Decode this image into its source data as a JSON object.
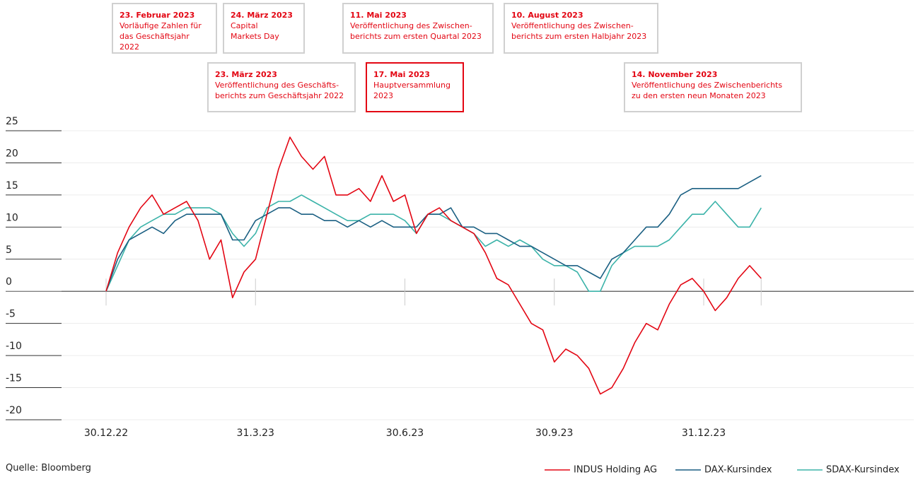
{
  "chart_data": {
    "type": "line",
    "annotations": [
      {
        "date": "23. Februar 2023",
        "lines": [
          "Vorläufige Zahlen für",
          "das Geschäftsjahr 2022"
        ],
        "highlighted": false
      },
      {
        "date": "24. März 2023",
        "lines": [
          "Capital",
          "Markets Day"
        ],
        "highlighted": false
      },
      {
        "date": "11. Mai 2023",
        "lines": [
          "Veröffentlichung des Zwischen-",
          "berichts zum ersten Quartal 2023"
        ],
        "highlighted": false
      },
      {
        "date": "10. August 2023",
        "lines": [
          "Veröffentlichung des Zwischen-",
          "berichts zum ersten Halbjahr 2023"
        ],
        "highlighted": false
      },
      {
        "date": "23. März 2023",
        "lines": [
          "Veröffentlichung des Geschäfts-",
          "berichts zum Geschäftsjahr 2022"
        ],
        "highlighted": false
      },
      {
        "date": "17. Mai 2023",
        "lines": [
          "Hauptversammlung",
          "2023"
        ],
        "highlighted": true
      },
      {
        "date": "14. November 2023",
        "lines": [
          "Veröffentlichung des Zwischenberichts",
          "zu den ersten neun Monaten 2023"
        ],
        "highlighted": false
      }
    ],
    "categories": [
      "30.12.22",
      null,
      null,
      null,
      null,
      null,
      null,
      null,
      null,
      null,
      null,
      null,
      null,
      "31.3.23",
      null,
      null,
      null,
      null,
      null,
      null,
      null,
      null,
      null,
      null,
      null,
      null,
      "30.6.23",
      null,
      null,
      null,
      null,
      null,
      null,
      null,
      null,
      null,
      null,
      null,
      null,
      "30.9.23",
      null,
      null,
      null,
      null,
      null,
      null,
      null,
      null,
      null,
      null,
      null,
      null,
      "31.12.23",
      null,
      null,
      null,
      null,
      null
    ],
    "series": [
      {
        "name": "INDUS Holding AG",
        "color": "#e30613",
        "values": [
          0,
          6,
          10,
          13,
          15,
          12,
          13,
          14,
          11,
          5,
          8,
          -1,
          3,
          5,
          12,
          19,
          24,
          21,
          19,
          21,
          15,
          15,
          16,
          14,
          18,
          14,
          15,
          9,
          12,
          13,
          11,
          10,
          9,
          6,
          2,
          1,
          -2,
          -5,
          -6,
          -11,
          -9,
          -10,
          -12,
          -16,
          -15,
          -12,
          -8,
          -5,
          -6,
          -2,
          1,
          2,
          0,
          -3,
          -1,
          2,
          4,
          2
        ]
      },
      {
        "name": "DAX-Kursindex",
        "color": "#1a5f82",
        "values": [
          0,
          5,
          8,
          9,
          10,
          9,
          11,
          12,
          12,
          12,
          12,
          8,
          8,
          11,
          12,
          13,
          13,
          12,
          12,
          11,
          11,
          10,
          11,
          10,
          11,
          10,
          10,
          10,
          12,
          12,
          13,
          10,
          10,
          9,
          9,
          8,
          7,
          7,
          6,
          5,
          4,
          4,
          3,
          2,
          5,
          6,
          8,
          10,
          10,
          12,
          15,
          16,
          16,
          16,
          16,
          16,
          17,
          18
        ]
      },
      {
        "name": "SDAX-Kursindex",
        "color": "#3bb3a9",
        "values": [
          0,
          4,
          8,
          10,
          11,
          12,
          12,
          13,
          13,
          13,
          12,
          9,
          7,
          9,
          13,
          14,
          14,
          15,
          14,
          13,
          12,
          11,
          11,
          12,
          12,
          12,
          11,
          9,
          12,
          12,
          11,
          10,
          9,
          7,
          8,
          7,
          8,
          7,
          5,
          4,
          4,
          3,
          0,
          0,
          4,
          6,
          7,
          7,
          7,
          8,
          10,
          12,
          12,
          14,
          12,
          10,
          10,
          13
        ]
      }
    ],
    "ylim": [
      -20,
      25
    ],
    "yticks": [
      25,
      20,
      15,
      10,
      5,
      0,
      -5,
      -10,
      -15,
      -20
    ],
    "grid": true,
    "source": "Quelle: Bloomberg"
  }
}
